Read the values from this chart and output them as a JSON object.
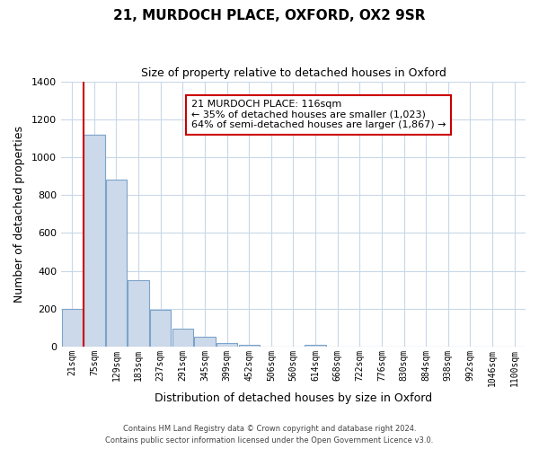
{
  "title": "21, MURDOCH PLACE, OXFORD, OX2 9SR",
  "subtitle": "Size of property relative to detached houses in Oxford",
  "xlabel": "Distribution of detached houses by size in Oxford",
  "ylabel": "Number of detached properties",
  "bar_labels": [
    "21sqm",
    "75sqm",
    "129sqm",
    "183sqm",
    "237sqm",
    "291sqm",
    "345sqm",
    "399sqm",
    "452sqm",
    "506sqm",
    "560sqm",
    "614sqm",
    "668sqm",
    "722sqm",
    "776sqm",
    "830sqm",
    "884sqm",
    "938sqm",
    "992sqm",
    "1046sqm",
    "1100sqm"
  ],
  "bar_values": [
    200,
    1120,
    880,
    350,
    195,
    95,
    52,
    20,
    12,
    0,
    0,
    10,
    0,
    0,
    0,
    0,
    0,
    0,
    0,
    0,
    0
  ],
  "bar_color": "#ccd9ea",
  "bar_edge_color": "#7ca3c9",
  "vline_x_index": 0.5,
  "vline_color": "#cc0000",
  "ylim": [
    0,
    1400
  ],
  "yticks": [
    0,
    200,
    400,
    600,
    800,
    1000,
    1200,
    1400
  ],
  "annotation_title": "21 MURDOCH PLACE: 116sqm",
  "annotation_line1": "← 35% of detached houses are smaller (1,023)",
  "annotation_line2": "64% of semi-detached houses are larger (1,867) →",
  "footer_line1": "Contains HM Land Registry data © Crown copyright and database right 2024.",
  "footer_line2": "Contains public sector information licensed under the Open Government Licence v3.0.",
  "background_color": "#ffffff",
  "grid_color": "#c8d8e8"
}
